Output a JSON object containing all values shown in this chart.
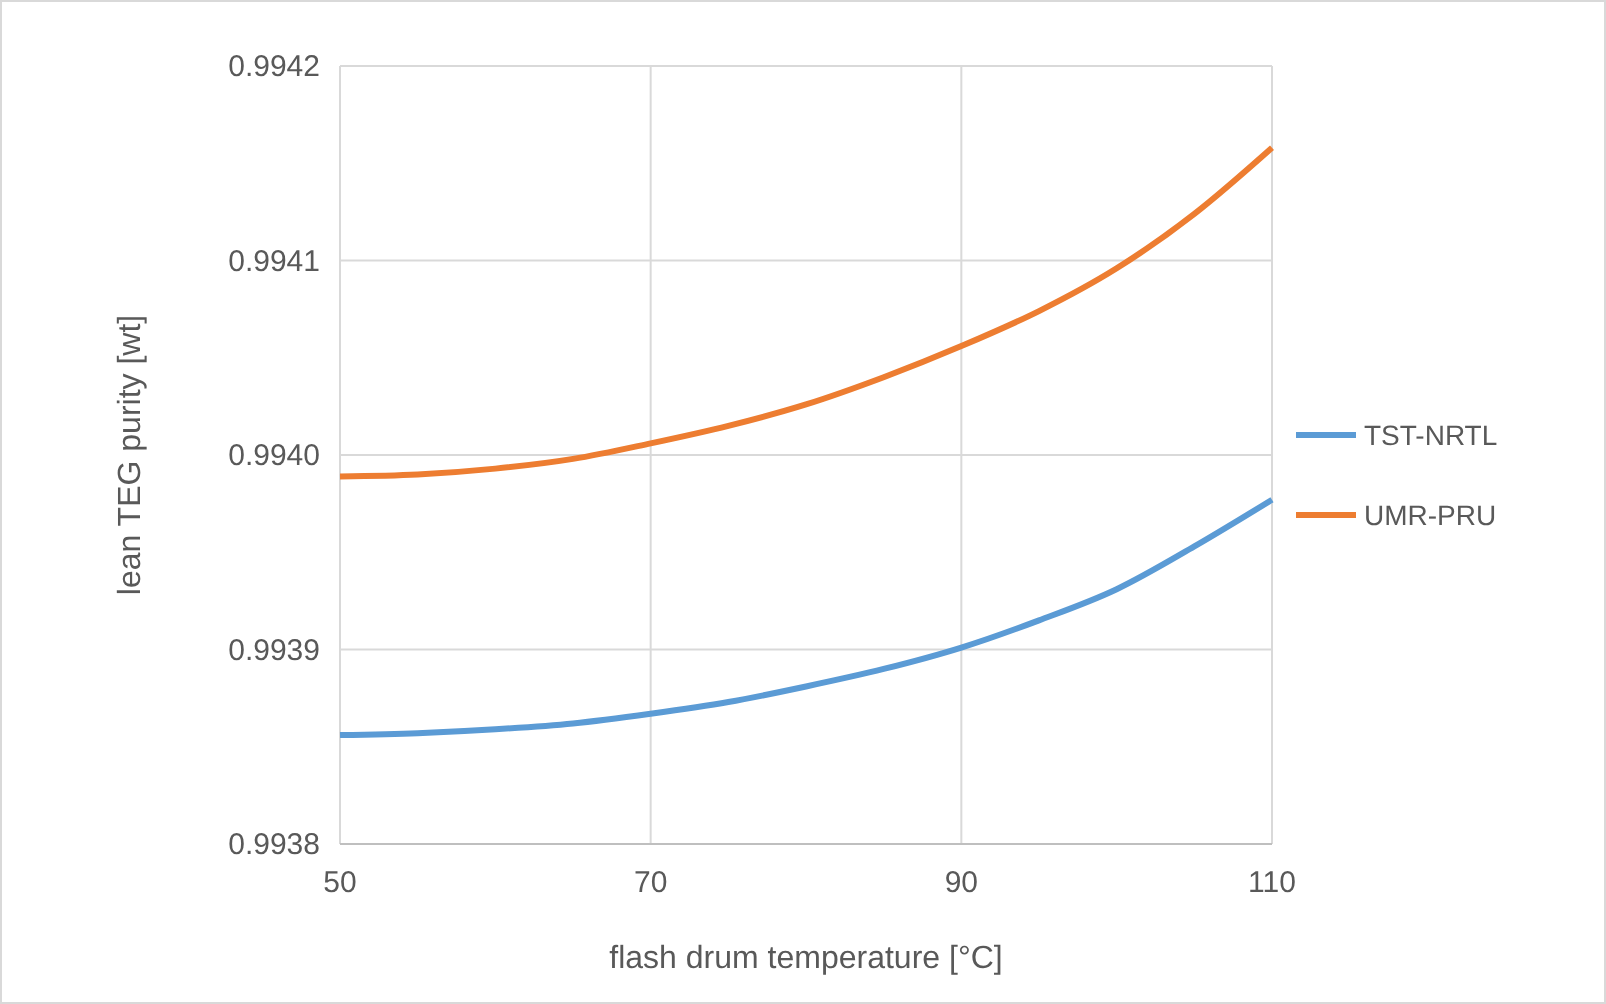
{
  "chart_data": {
    "type": "line",
    "xlabel": "flash drum temperature [°C]",
    "ylabel": "lean TEG purity [wt]",
    "x": [
      50,
      55,
      60,
      65,
      70,
      75,
      80,
      85,
      90,
      95,
      100,
      105,
      110
    ],
    "series": [
      {
        "name": "TST-NRTL",
        "color": "#5b9bd5",
        "values": [
          0.993856,
          0.993857,
          0.993859,
          0.993862,
          0.993867,
          0.993873,
          0.993881,
          0.99389,
          0.993901,
          0.993915,
          0.993931,
          0.993953,
          0.993977
        ]
      },
      {
        "name": "UMR-PRU",
        "color": "#ed7d31",
        "values": [
          0.993989,
          0.99399,
          0.993993,
          0.993998,
          0.994006,
          0.994015,
          0.994026,
          0.99404,
          0.994056,
          0.994074,
          0.994096,
          0.994124,
          0.994158
        ]
      }
    ],
    "xlim": [
      50,
      110
    ],
    "xticks": [
      50,
      70,
      90,
      110
    ],
    "ylim": [
      0.9938,
      0.9942
    ],
    "yticks": [
      {
        "value": 0.9938,
        "label": "0.9938"
      },
      {
        "value": 0.9939,
        "label": "0.9939"
      },
      {
        "value": 0.994,
        "label": "0.9940"
      },
      {
        "value": 0.9941,
        "label": "0.9941"
      },
      {
        "value": 0.9942,
        "label": "0.9942"
      }
    ],
    "grid": true,
    "legend": "right",
    "marker": "none",
    "line_style": "solid"
  }
}
